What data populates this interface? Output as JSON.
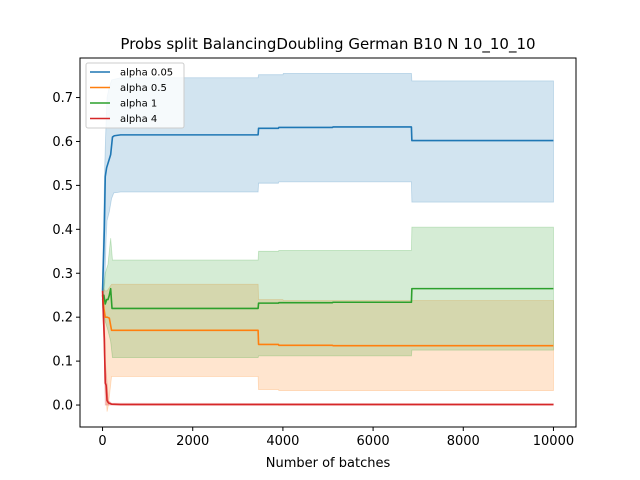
{
  "chart_data": {
    "type": "line",
    "title": "Probs split BalancingDoubling German B10 N 10_10_10",
    "xlabel": "Number of batches",
    "ylabel": "",
    "xlim": [
      -500,
      10500
    ],
    "ylim": [
      -0.05,
      0.79
    ],
    "xticks": [
      0,
      2000,
      4000,
      6000,
      8000,
      10000
    ],
    "yticks": [
      0.0,
      0.1,
      0.2,
      0.3,
      0.4,
      0.5,
      0.6,
      0.7
    ],
    "ytick_labels": [
      "0.0",
      "0.1",
      "0.2",
      "0.3",
      "0.4",
      "0.5",
      "0.6",
      "0.7"
    ],
    "legend_position": "top-left",
    "grid": false,
    "series": [
      {
        "name": "alpha 0.05",
        "color": "#1f77b4",
        "mean": [
          [
            0,
            0.26
          ],
          [
            20,
            0.33
          ],
          [
            40,
            0.4
          ],
          [
            60,
            0.52
          ],
          [
            90,
            0.54
          ],
          [
            120,
            0.55
          ],
          [
            150,
            0.56
          ],
          [
            180,
            0.57
          ],
          [
            220,
            0.61
          ],
          [
            260,
            0.613
          ],
          [
            400,
            0.615
          ],
          [
            3450,
            0.615
          ],
          [
            3460,
            0.63
          ],
          [
            3900,
            0.63
          ],
          [
            3910,
            0.632
          ],
          [
            5100,
            0.632
          ],
          [
            5110,
            0.633
          ],
          [
            6850,
            0.633
          ],
          [
            6860,
            0.602
          ],
          [
            10000,
            0.602
          ]
        ],
        "upper": [
          [
            0,
            0.3
          ],
          [
            50,
            0.55
          ],
          [
            80,
            0.65
          ],
          [
            100,
            0.7
          ],
          [
            140,
            0.72
          ],
          [
            200,
            0.74
          ],
          [
            400,
            0.745
          ],
          [
            3450,
            0.745
          ],
          [
            3460,
            0.752
          ],
          [
            4000,
            0.752
          ],
          [
            4010,
            0.755
          ],
          [
            6850,
            0.755
          ],
          [
            6860,
            0.738
          ],
          [
            10000,
            0.738
          ]
        ],
        "lower": [
          [
            0,
            0.22
          ],
          [
            50,
            0.28
          ],
          [
            80,
            0.38
          ],
          [
            100,
            0.42
          ],
          [
            150,
            0.44
          ],
          [
            200,
            0.47
          ],
          [
            250,
            0.483
          ],
          [
            400,
            0.485
          ],
          [
            3450,
            0.485
          ],
          [
            3460,
            0.505
          ],
          [
            3900,
            0.505
          ],
          [
            3910,
            0.508
          ],
          [
            6850,
            0.508
          ],
          [
            6860,
            0.462
          ],
          [
            10000,
            0.462
          ]
        ]
      },
      {
        "name": "alpha 0.5",
        "color": "#ff7f0e",
        "mean": [
          [
            0,
            0.25
          ],
          [
            30,
            0.22
          ],
          [
            60,
            0.2
          ],
          [
            100,
            0.2
          ],
          [
            150,
            0.198
          ],
          [
            200,
            0.17
          ],
          [
            3450,
            0.17
          ],
          [
            3460,
            0.138
          ],
          [
            3900,
            0.138
          ],
          [
            3910,
            0.136
          ],
          [
            5100,
            0.136
          ],
          [
            5110,
            0.135
          ],
          [
            10000,
            0.135
          ]
        ],
        "upper": [
          [
            0,
            0.27
          ],
          [
            50,
            0.26
          ],
          [
            100,
            0.26
          ],
          [
            200,
            0.275
          ],
          [
            3450,
            0.275
          ],
          [
            3460,
            0.24
          ],
          [
            4000,
            0.24
          ],
          [
            4010,
            0.238
          ],
          [
            10000,
            0.238
          ]
        ],
        "lower": [
          [
            0,
            0.23
          ],
          [
            50,
            0.08
          ],
          [
            100,
            -0.015
          ],
          [
            130,
            0.0
          ],
          [
            200,
            0.065
          ],
          [
            3450,
            0.065
          ],
          [
            3460,
            0.035
          ],
          [
            3900,
            0.035
          ],
          [
            3910,
            0.033
          ],
          [
            10000,
            0.033
          ]
        ]
      },
      {
        "name": "alpha 1",
        "color": "#2ca02c",
        "mean": [
          [
            0,
            0.24
          ],
          [
            30,
            0.25
          ],
          [
            60,
            0.23
          ],
          [
            90,
            0.24
          ],
          [
            120,
            0.24
          ],
          [
            150,
            0.25
          ],
          [
            180,
            0.265
          ],
          [
            210,
            0.22
          ],
          [
            400,
            0.22
          ],
          [
            3450,
            0.22
          ],
          [
            3460,
            0.232
          ],
          [
            3900,
            0.232
          ],
          [
            3910,
            0.233
          ],
          [
            5100,
            0.233
          ],
          [
            5110,
            0.234
          ],
          [
            6850,
            0.234
          ],
          [
            6860,
            0.265
          ],
          [
            10000,
            0.265
          ]
        ],
        "upper": [
          [
            0,
            0.25
          ],
          [
            60,
            0.3
          ],
          [
            120,
            0.32
          ],
          [
            180,
            0.38
          ],
          [
            220,
            0.33
          ],
          [
            400,
            0.33
          ],
          [
            3450,
            0.33
          ],
          [
            3460,
            0.35
          ],
          [
            3900,
            0.35
          ],
          [
            3910,
            0.352
          ],
          [
            6850,
            0.352
          ],
          [
            6860,
            0.405
          ],
          [
            10000,
            0.405
          ]
        ],
        "lower": [
          [
            0,
            0.23
          ],
          [
            60,
            0.19
          ],
          [
            120,
            0.17
          ],
          [
            180,
            0.145
          ],
          [
            220,
            0.108
          ],
          [
            400,
            0.108
          ],
          [
            3450,
            0.108
          ],
          [
            3460,
            0.112
          ],
          [
            6850,
            0.112
          ],
          [
            6860,
            0.125
          ],
          [
            10000,
            0.125
          ]
        ]
      },
      {
        "name": "alpha 4",
        "color": "#d62728",
        "mean": [
          [
            0,
            0.26
          ],
          [
            20,
            0.2
          ],
          [
            40,
            0.15
          ],
          [
            60,
            0.05
          ],
          [
            80,
            0.045
          ],
          [
            100,
            0.01
          ],
          [
            130,
            0.005
          ],
          [
            200,
            0.002
          ],
          [
            400,
            0.001
          ],
          [
            10000,
            0.001
          ]
        ],
        "upper": [
          [
            0,
            0.27
          ],
          [
            40,
            0.2
          ],
          [
            60,
            0.1
          ],
          [
            100,
            0.05
          ],
          [
            130,
            0.01
          ],
          [
            200,
            0.004
          ],
          [
            10000,
            0.003
          ]
        ],
        "lower": [
          [
            0,
            0.25
          ],
          [
            40,
            0.1
          ],
          [
            60,
            0.0
          ],
          [
            200,
            0.0
          ],
          [
            10000,
            0.0
          ]
        ]
      }
    ]
  }
}
